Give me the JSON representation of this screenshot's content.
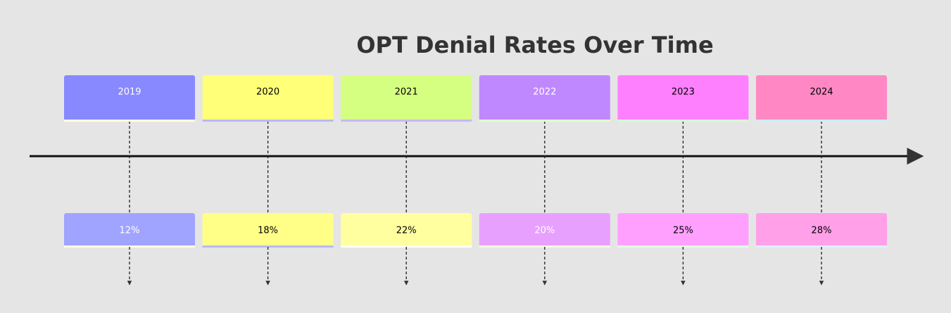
{
  "title": "OPT Denial Rates Over Time",
  "periods": [
    {
      "label": "2019",
      "events": [
        "12%"
      ]
    },
    {
      "label": "2020",
      "events": [
        "18%"
      ]
    },
    {
      "label": "2021",
      "events": [
        "22%"
      ]
    },
    {
      "label": "2022",
      "events": [
        "20%"
      ]
    },
    {
      "label": "2023",
      "events": [
        "25%"
      ]
    },
    {
      "label": "2024",
      "events": [
        "28%"
      ]
    }
  ]
}
